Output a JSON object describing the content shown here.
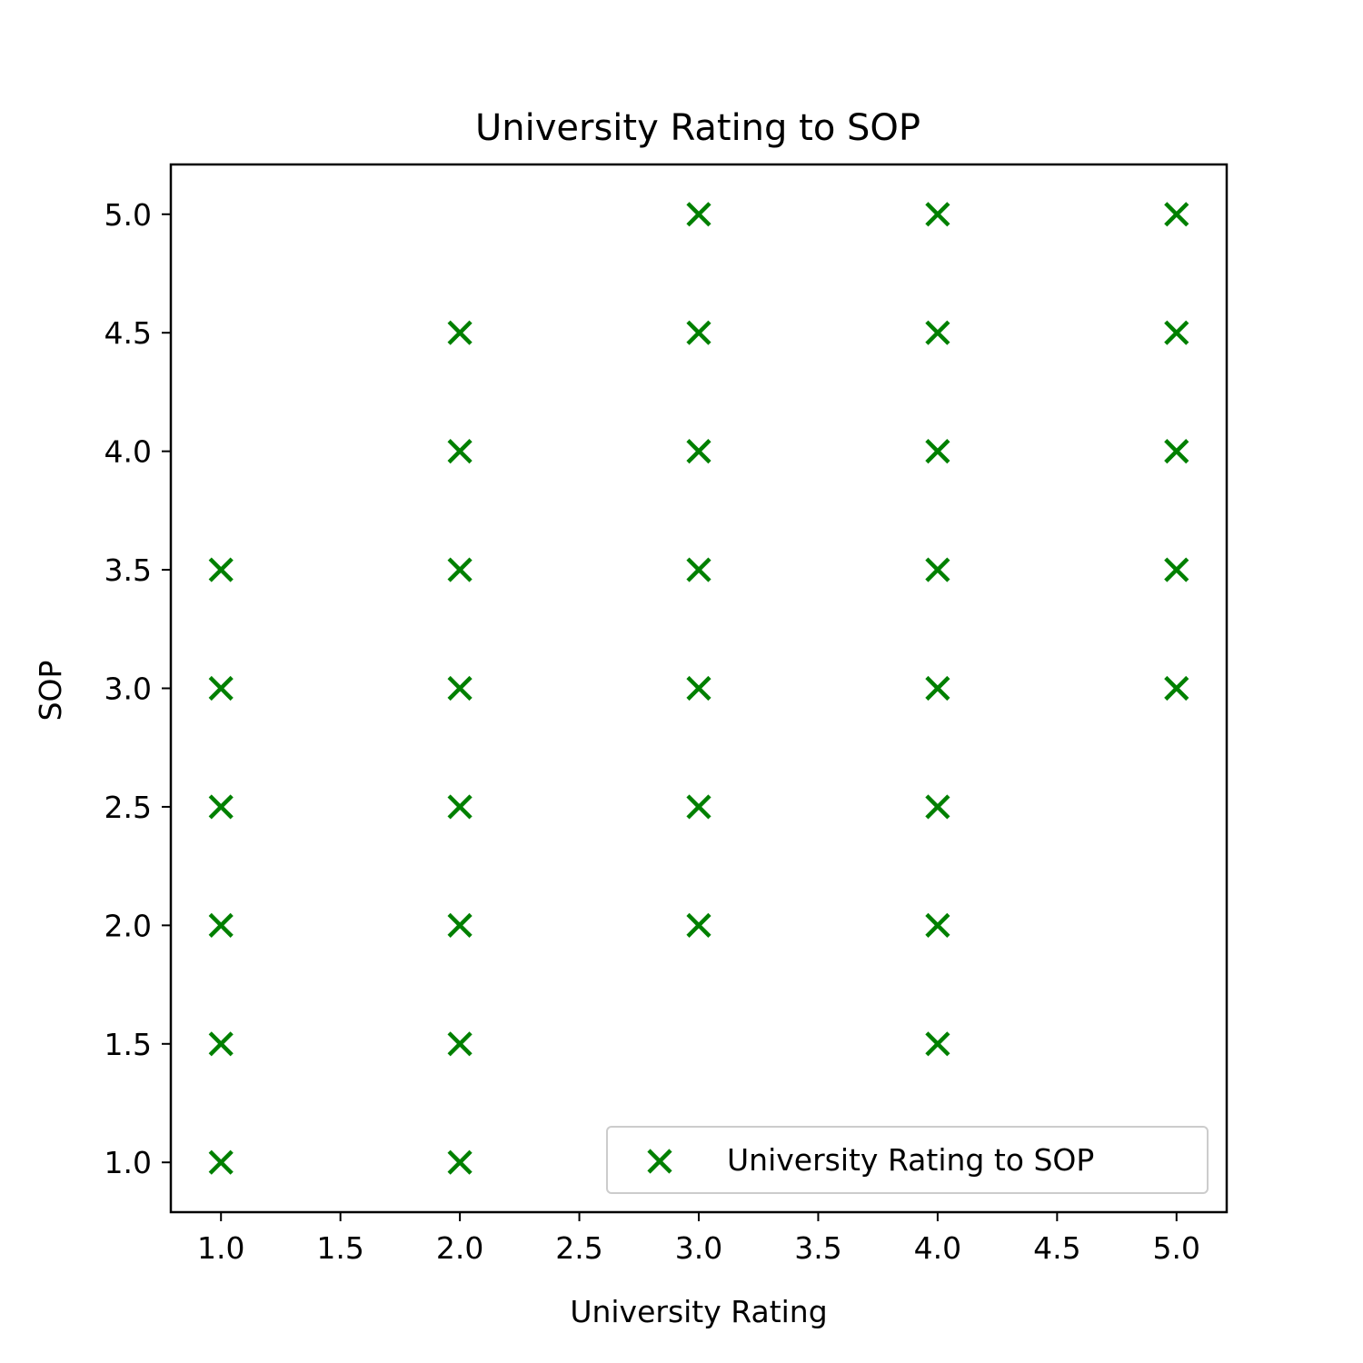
{
  "chart_data": {
    "type": "scatter",
    "title": "University Rating to SOP",
    "xlabel": "University Rating",
    "ylabel": "SOP",
    "xlim": [
      0.79,
      5.21
    ],
    "ylim": [
      0.79,
      5.21
    ],
    "xticks": [
      "1.0",
      "1.5",
      "2.0",
      "2.5",
      "3.0",
      "3.5",
      "4.0",
      "4.5",
      "5.0"
    ],
    "yticks": [
      "1.0",
      "1.5",
      "2.0",
      "2.5",
      "3.0",
      "3.5",
      "4.0",
      "4.5",
      "5.0"
    ],
    "grid": false,
    "legend_position": "lower-right",
    "marker": "x",
    "color": "#008000",
    "series": [
      {
        "name": "University Rating to SOP",
        "points": [
          [
            1,
            1.0
          ],
          [
            1,
            1.5
          ],
          [
            1,
            2.0
          ],
          [
            1,
            2.5
          ],
          [
            1,
            3.0
          ],
          [
            1,
            3.5
          ],
          [
            2,
            1.0
          ],
          [
            2,
            1.5
          ],
          [
            2,
            2.0
          ],
          [
            2,
            2.5
          ],
          [
            2,
            3.0
          ],
          [
            2,
            3.5
          ],
          [
            2,
            4.0
          ],
          [
            2,
            4.5
          ],
          [
            3,
            2.0
          ],
          [
            3,
            2.5
          ],
          [
            3,
            3.0
          ],
          [
            3,
            3.5
          ],
          [
            3,
            4.0
          ],
          [
            3,
            4.5
          ],
          [
            3,
            5.0
          ],
          [
            4,
            1.5
          ],
          [
            4,
            2.0
          ],
          [
            4,
            2.5
          ],
          [
            4,
            3.0
          ],
          [
            4,
            3.5
          ],
          [
            4,
            4.0
          ],
          [
            4,
            4.5
          ],
          [
            4,
            5.0
          ],
          [
            5,
            3.0
          ],
          [
            5,
            3.5
          ],
          [
            5,
            4.0
          ],
          [
            5,
            4.5
          ],
          [
            5,
            5.0
          ]
        ]
      }
    ]
  }
}
